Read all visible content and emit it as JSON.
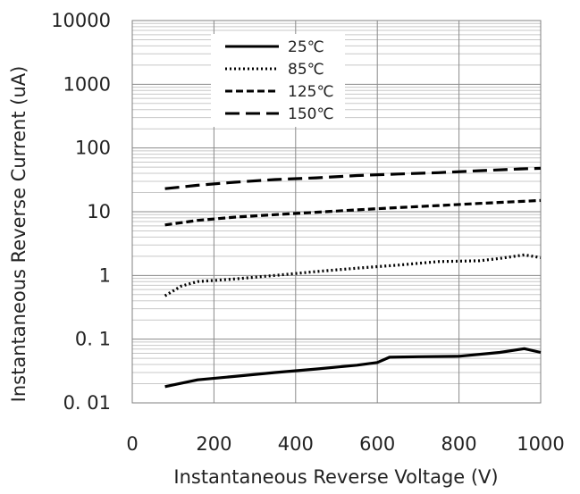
{
  "chart_data": {
    "type": "line",
    "xlabel": "Instantaneous Reverse Voltage (V)",
    "ylabel": "Instantaneous Reverse Current (uA)",
    "xlim": [
      0,
      1000
    ],
    "ylim": [
      0.01,
      10000
    ],
    "yscale": "log",
    "grid": true,
    "legend_position": "top-center",
    "x_ticks": [
      "0",
      "200",
      "400",
      "600",
      "800",
      "1000"
    ],
    "y_ticks": [
      "0. 01",
      "0. 1",
      "1",
      "10",
      "100",
      "1000",
      "10000"
    ],
    "series": [
      {
        "name": "25℃",
        "style": "solid",
        "x": [
          80,
          160,
          250,
          350,
          450,
          550,
          600,
          630,
          700,
          800,
          900,
          960,
          1000
        ],
        "y": [
          0.018,
          0.023,
          0.026,
          0.03,
          0.034,
          0.039,
          0.043,
          0.052,
          0.053,
          0.054,
          0.062,
          0.071,
          0.062
        ]
      },
      {
        "name": "85℃",
        "style": "dotted",
        "x": [
          80,
          120,
          160,
          250,
          350,
          450,
          550,
          650,
          750,
          850,
          900,
          960,
          1000
        ],
        "y": [
          0.48,
          0.68,
          0.8,
          0.88,
          1.0,
          1.15,
          1.3,
          1.45,
          1.65,
          1.7,
          1.85,
          2.1,
          1.9
        ]
      },
      {
        "name": "125℃",
        "style": "dashed",
        "x": [
          80,
          160,
          250,
          350,
          450,
          550,
          650,
          750,
          850,
          950,
          1000
        ],
        "y": [
          6.2,
          7.3,
          8.2,
          9.0,
          9.8,
          10.7,
          11.6,
          12.5,
          13.5,
          14.5,
          15
        ]
      },
      {
        "name": "150℃",
        "style": "long-dash",
        "x": [
          80,
          160,
          250,
          350,
          450,
          550,
          650,
          750,
          850,
          950,
          1000
        ],
        "y": [
          23,
          26,
          29,
          32,
          34,
          37,
          39,
          41,
          44,
          47,
          48
        ]
      }
    ]
  }
}
